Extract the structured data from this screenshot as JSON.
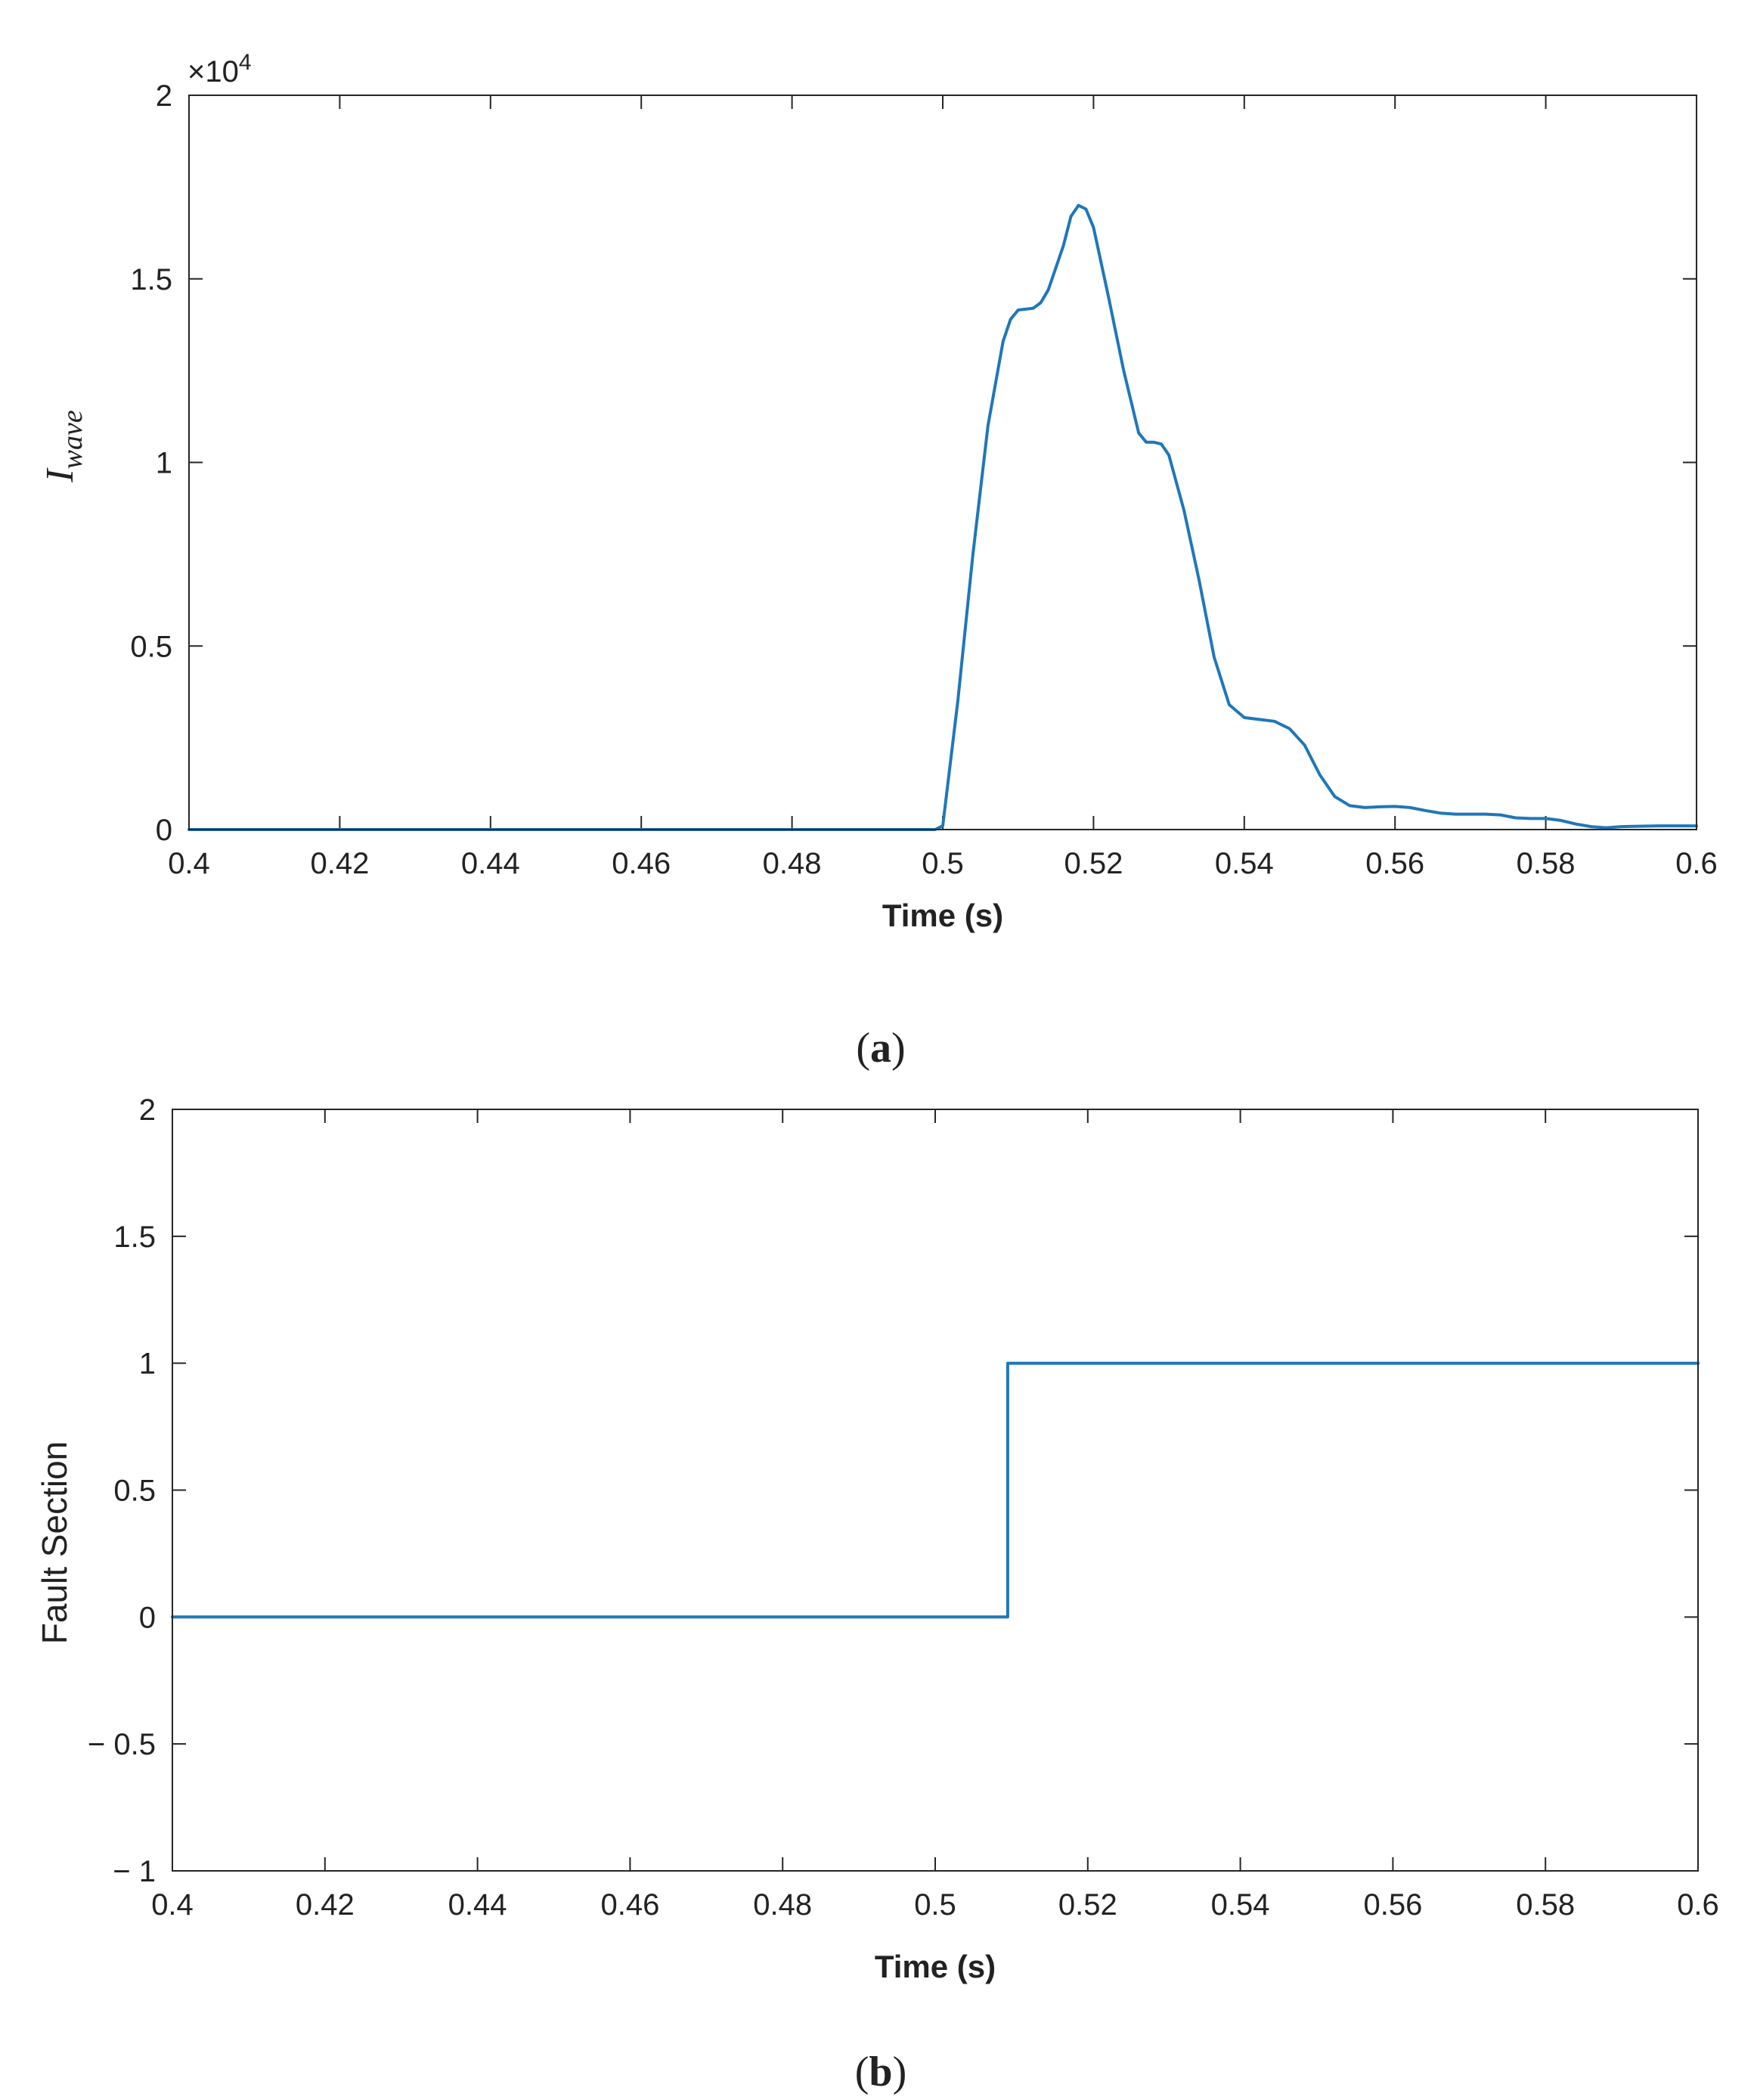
{
  "colors": {
    "line": "#1f77b9",
    "axis": "#262626"
  },
  "chart_data": [
    {
      "type": "line",
      "panel_label": "a",
      "xlabel": "Time (s)",
      "ylabel_base": "I",
      "ylabel_sub": "wave",
      "y_exponent": "×10",
      "y_exponent_power": "4",
      "xlim": [
        0.4,
        0.6
      ],
      "ylim": [
        0,
        20000
      ],
      "grid": false,
      "xticks": [
        0.4,
        0.42,
        0.44,
        0.46,
        0.48,
        0.5,
        0.52,
        0.54,
        0.56,
        0.58,
        0.6
      ],
      "xtick_labels": [
        "0.4",
        "0.42",
        "0.44",
        "0.46",
        "0.48",
        "0.5",
        "0.52",
        "0.54",
        "0.56",
        "0.58",
        "0.6"
      ],
      "yticks": [
        0,
        5000,
        10000,
        15000,
        20000
      ],
      "ytick_labels": [
        "0",
        "0.5",
        "1",
        "1.5",
        "2"
      ],
      "series": [
        {
          "x": [
            0.4,
            0.499,
            0.5,
            0.502,
            0.504,
            0.506,
            0.508,
            0.509,
            0.51,
            0.512,
            0.513,
            0.514,
            0.516,
            0.517,
            0.518,
            0.519,
            0.52,
            0.522,
            0.524,
            0.526,
            0.527,
            0.528,
            0.529,
            0.53,
            0.532,
            0.534,
            0.536,
            0.538,
            0.54,
            0.542,
            0.544,
            0.546,
            0.548,
            0.55,
            0.552,
            0.554,
            0.556,
            0.558,
            0.56,
            0.562,
            0.564,
            0.566,
            0.568,
            0.57,
            0.572,
            0.574,
            0.576,
            0.578,
            0.58,
            0.582,
            0.584,
            0.586,
            0.588,
            0.59,
            0.595,
            0.6
          ],
          "y": [
            0,
            0,
            100,
            3500,
            7500,
            11000,
            13300,
            13900,
            14150,
            14200,
            14350,
            14700,
            15900,
            16700,
            17000,
            16900,
            16400,
            14500,
            12500,
            10800,
            10550,
            10550,
            10500,
            10200,
            8700,
            6800,
            4700,
            3400,
            3050,
            3000,
            2950,
            2750,
            2300,
            1500,
            900,
            650,
            600,
            620,
            630,
            600,
            520,
            450,
            420,
            420,
            420,
            400,
            320,
            300,
            300,
            250,
            150,
            80,
            50,
            80,
            100,
            100
          ]
        }
      ]
    },
    {
      "type": "line",
      "panel_label": "b",
      "xlabel": "Time (s)",
      "ylabel": "Fault Section",
      "xlim": [
        0.4,
        0.6
      ],
      "ylim": [
        -1,
        2
      ],
      "grid": false,
      "xticks": [
        0.4,
        0.42,
        0.44,
        0.46,
        0.48,
        0.5,
        0.52,
        0.54,
        0.56,
        0.58,
        0.6
      ],
      "xtick_labels": [
        "0.4",
        "0.42",
        "0.44",
        "0.46",
        "0.48",
        "0.5",
        "0.52",
        "0.54",
        "0.56",
        "0.58",
        "0.6"
      ],
      "yticks": [
        -1,
        -0.5,
        0,
        0.5,
        1,
        1.5,
        2
      ],
      "ytick_labels": [
        "− 1",
        "− 0.5",
        "0",
        "0.5",
        "1",
        "1.5",
        "2"
      ],
      "series": [
        {
          "x": [
            0.4,
            0.5095,
            0.5095,
            0.6
          ],
          "y": [
            0,
            0,
            1,
            1
          ]
        }
      ]
    }
  ]
}
